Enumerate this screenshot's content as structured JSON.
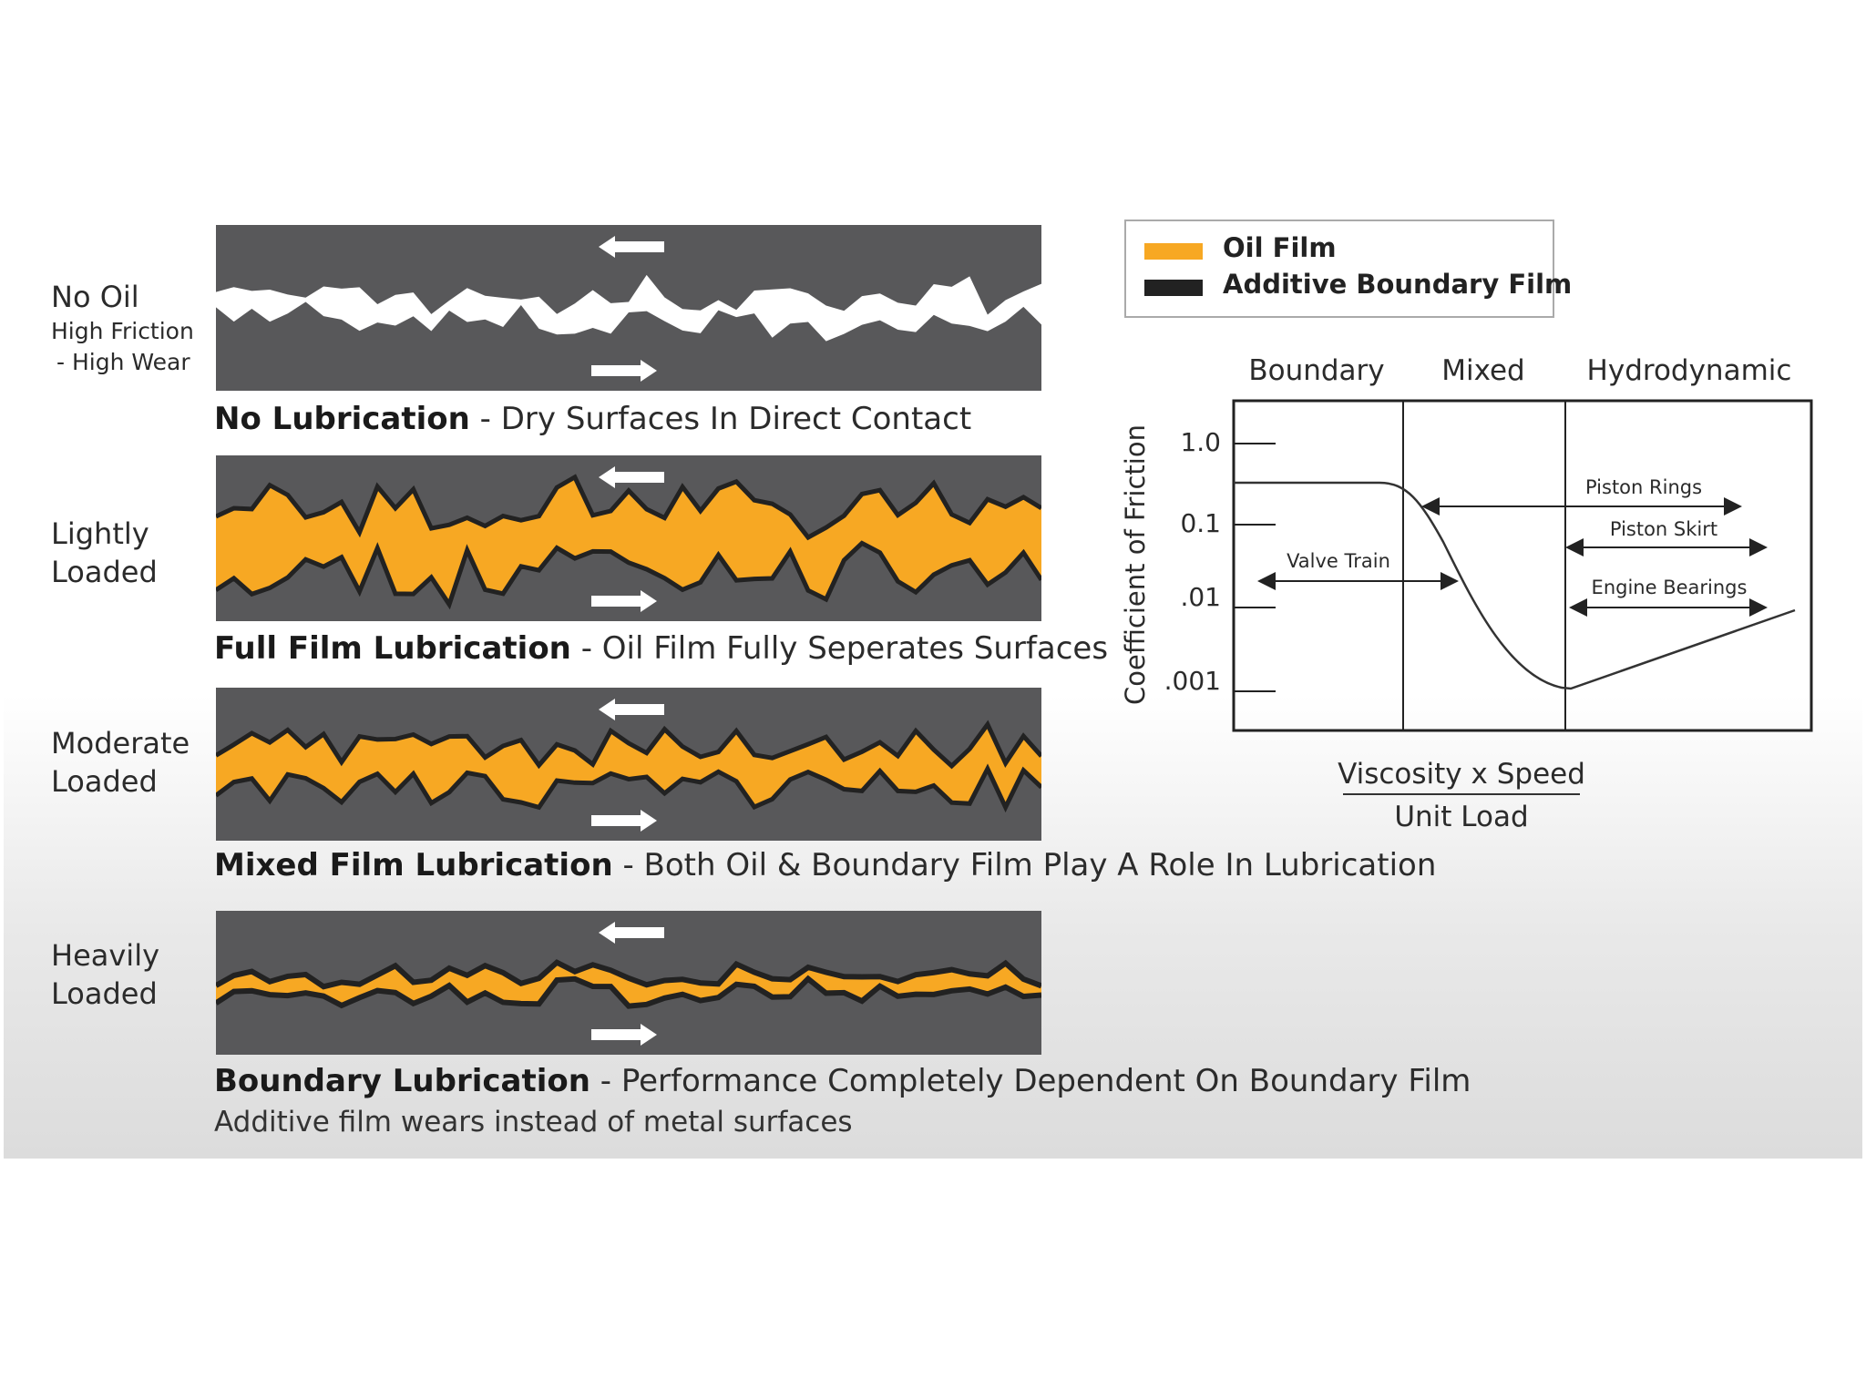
{
  "rows": [
    {
      "label_lines": [
        "No Oil",
        "High Friction",
        "- High Wear"
      ],
      "caption_title": "No Lubrication",
      "caption_desc": "- Dry Surfaces In Direct Contact",
      "film": "none"
    },
    {
      "label_lines": [
        "Lightly",
        "Loaded"
      ],
      "caption_title": "Full Film Lubrication",
      "caption_desc": "- Oil Film Fully Seperates Surfaces",
      "film": "full"
    },
    {
      "label_lines": [
        "Moderate",
        "Loaded"
      ],
      "caption_title": "Mixed Film Lubrication",
      "caption_desc": "- Both Oil & Boundary Film Play A Role In Lubrication",
      "film": "mixed"
    },
    {
      "label_lines": [
        "Heavily",
        "Loaded"
      ],
      "caption_title": "Boundary Lubrication",
      "caption_desc": "- Performance Completely Dependent On Boundary Film",
      "film": "boundary",
      "note": "Additive film wears instead of metal surfaces"
    }
  ],
  "legend": [
    {
      "label": "Oil Film",
      "color": "#f7a823"
    },
    {
      "label": "Additive Boundary Film",
      "color": "#222222"
    }
  ],
  "graph": {
    "regimes": [
      "Boundary",
      "Mixed",
      "Hydrodynamic"
    ],
    "y_label": "Coefficient of Friction",
    "y_ticks": [
      "1.0",
      "0.1",
      ".01",
      ".001"
    ],
    "x_label_top": "Viscosity x Speed",
    "x_label_bottom": "Unit Load",
    "ranges": [
      "Valve Train",
      "Piston Rings",
      "Piston Skirt",
      "Engine Bearings"
    ]
  },
  "colors": {
    "panel": "#58585a",
    "oil": "#f7a823",
    "boundary_film": "#222222",
    "metal_gap": "#ffffff"
  },
  "icons": [
    "arrow-left-icon",
    "arrow-right-icon"
  ]
}
